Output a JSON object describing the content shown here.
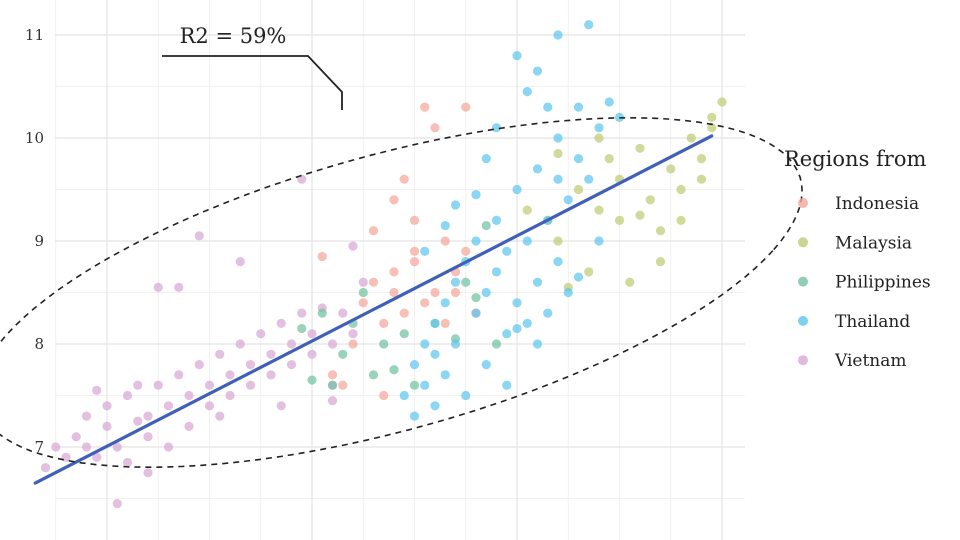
{
  "chart_data": {
    "type": "scatter",
    "x_range": [
      6.6,
      10.2
    ],
    "y_range": [
      6.35,
      11.3
    ],
    "x_ticks": [
      7,
      8,
      9,
      10
    ],
    "y_ticks": [
      7,
      8,
      9,
      10,
      11
    ],
    "grid": true,
    "legend": {
      "title": "Regions from",
      "placement": "right",
      "entries": [
        {
          "name": "Indonesia",
          "color": "#F4A698"
        },
        {
          "name": "Malaysia",
          "color": "#BFCA74"
        },
        {
          "name": "Philippines",
          "color": "#72C2A2"
        },
        {
          "name": "Thailand",
          "color": "#5EC6EE"
        },
        {
          "name": "Vietnam",
          "color": "#D8A8D4"
        }
      ]
    },
    "fit_line": {
      "x": [
        6.65,
        9.95
      ],
      "y": [
        6.65,
        10.02
      ],
      "color": "#3F5FB8"
    },
    "annotation": {
      "text": "R2 = 59%"
    },
    "ellipse": {
      "cx": 8.38,
      "cy": 8.5,
      "rx": 2.05,
      "ry": 1.8,
      "angle_deg": -24
    },
    "series": [
      {
        "name": "Vietnam",
        "points": [
          [
            6.7,
            6.8
          ],
          [
            6.75,
            7.0
          ],
          [
            6.8,
            6.9
          ],
          [
            6.85,
            7.1
          ],
          [
            6.9,
            7.0
          ],
          [
            6.9,
            7.3
          ],
          [
            6.95,
            6.9
          ],
          [
            7.0,
            7.2
          ],
          [
            7.0,
            7.4
          ],
          [
            7.05,
            7.0
          ],
          [
            7.1,
            7.5
          ],
          [
            7.1,
            6.85
          ],
          [
            7.15,
            7.6
          ],
          [
            7.2,
            7.1
          ],
          [
            7.2,
            7.3
          ],
          [
            7.25,
            7.6
          ],
          [
            7.3,
            7.4
          ],
          [
            7.3,
            7.0
          ],
          [
            7.35,
            7.7
          ],
          [
            7.4,
            7.2
          ],
          [
            7.4,
            7.5
          ],
          [
            7.45,
            7.8
          ],
          [
            7.5,
            7.4
          ],
          [
            7.5,
            7.6
          ],
          [
            7.55,
            7.9
          ],
          [
            7.6,
            7.5
          ],
          [
            7.6,
            7.7
          ],
          [
            7.65,
            8.0
          ],
          [
            7.7,
            7.6
          ],
          [
            7.7,
            7.8
          ],
          [
            7.75,
            8.1
          ],
          [
            7.8,
            7.7
          ],
          [
            7.8,
            7.9
          ],
          [
            7.85,
            8.2
          ],
          [
            7.9,
            7.8
          ],
          [
            7.9,
            8.0
          ],
          [
            7.95,
            8.3
          ],
          [
            8.0,
            7.9
          ],
          [
            8.0,
            8.1
          ],
          [
            8.05,
            8.35
          ],
          [
            8.1,
            8.0
          ],
          [
            8.1,
            7.6
          ],
          [
            8.15,
            8.3
          ],
          [
            8.2,
            8.1
          ],
          [
            7.25,
            8.55
          ],
          [
            7.35,
            8.55
          ],
          [
            7.45,
            9.05
          ],
          [
            7.65,
            8.8
          ],
          [
            7.95,
            9.6
          ],
          [
            8.2,
            8.95
          ],
          [
            7.05,
            6.45
          ],
          [
            7.2,
            6.75
          ],
          [
            8.1,
            7.45
          ],
          [
            7.55,
            7.3
          ],
          [
            6.95,
            7.55
          ],
          [
            7.15,
            7.25
          ],
          [
            7.85,
            7.4
          ],
          [
            8.25,
            8.6
          ]
        ]
      },
      {
        "name": "Indonesia",
        "points": [
          [
            8.1,
            7.7
          ],
          [
            8.2,
            8.0
          ],
          [
            8.25,
            8.4
          ],
          [
            8.3,
            8.6
          ],
          [
            8.35,
            8.2
          ],
          [
            8.4,
            8.5
          ],
          [
            8.4,
            8.7
          ],
          [
            8.45,
            8.3
          ],
          [
            8.5,
            8.8
          ],
          [
            8.5,
            8.9
          ],
          [
            8.55,
            8.4
          ],
          [
            8.6,
            8.5
          ],
          [
            8.65,
            9.0
          ],
          [
            8.7,
            8.7
          ],
          [
            8.75,
            8.9
          ],
          [
            8.4,
            9.4
          ],
          [
            8.45,
            9.6
          ],
          [
            8.55,
            10.3
          ],
          [
            8.75,
            10.3
          ],
          [
            8.5,
            9.2
          ],
          [
            8.05,
            8.85
          ],
          [
            8.6,
            10.1
          ],
          [
            8.3,
            9.1
          ],
          [
            8.35,
            7.5
          ],
          [
            8.7,
            8.5
          ],
          [
            8.8,
            8.3
          ],
          [
            8.15,
            7.6
          ],
          [
            8.65,
            8.2
          ]
        ]
      },
      {
        "name": "Malaysia",
        "points": [
          [
            9.2,
            9.0
          ],
          [
            9.3,
            9.5
          ],
          [
            9.35,
            8.7
          ],
          [
            9.4,
            9.3
          ],
          [
            9.45,
            9.8
          ],
          [
            9.5,
            9.6
          ],
          [
            9.55,
            8.6
          ],
          [
            9.6,
            9.9
          ],
          [
            9.65,
            9.4
          ],
          [
            9.7,
            9.1
          ],
          [
            9.75,
            9.7
          ],
          [
            9.8,
            9.5
          ],
          [
            9.85,
            10.0
          ],
          [
            9.9,
            9.8
          ],
          [
            9.95,
            10.1
          ],
          [
            10.0,
            10.35
          ],
          [
            9.95,
            10.2
          ],
          [
            9.9,
            9.6
          ],
          [
            9.15,
            9.2
          ],
          [
            9.25,
            8.55
          ],
          [
            9.05,
            9.3
          ],
          [
            9.5,
            9.2
          ],
          [
            9.7,
            8.8
          ],
          [
            9.8,
            9.2
          ],
          [
            9.2,
            9.85
          ],
          [
            9.4,
            10.0
          ],
          [
            9.6,
            9.25
          ]
        ]
      },
      {
        "name": "Philippines",
        "points": [
          [
            8.0,
            7.65
          ],
          [
            8.05,
            8.3
          ],
          [
            8.1,
            7.6
          ],
          [
            8.15,
            7.9
          ],
          [
            8.2,
            8.2
          ],
          [
            8.3,
            7.7
          ],
          [
            8.35,
            8.0
          ],
          [
            8.4,
            7.75
          ],
          [
            8.5,
            7.6
          ],
          [
            8.6,
            8.2
          ],
          [
            8.7,
            8.05
          ],
          [
            8.75,
            8.6
          ],
          [
            8.8,
            8.45
          ],
          [
            8.85,
            9.15
          ],
          [
            8.9,
            8.0
          ],
          [
            8.45,
            8.1
          ],
          [
            7.95,
            8.15
          ],
          [
            8.25,
            8.5
          ]
        ]
      },
      {
        "name": "Thailand",
        "points": [
          [
            8.45,
            7.5
          ],
          [
            8.5,
            7.8
          ],
          [
            8.5,
            7.3
          ],
          [
            8.55,
            7.6
          ],
          [
            8.55,
            8.0
          ],
          [
            8.6,
            7.4
          ],
          [
            8.6,
            7.9
          ],
          [
            8.6,
            8.2
          ],
          [
            8.65,
            8.4
          ],
          [
            8.65,
            7.7
          ],
          [
            8.7,
            8.6
          ],
          [
            8.7,
            8.0
          ],
          [
            8.75,
            8.8
          ],
          [
            8.75,
            7.5
          ],
          [
            8.8,
            8.3
          ],
          [
            8.8,
            9.0
          ],
          [
            8.85,
            8.5
          ],
          [
            8.85,
            7.8
          ],
          [
            8.9,
            8.7
          ],
          [
            8.9,
            9.2
          ],
          [
            8.95,
            8.1
          ],
          [
            8.95,
            8.9
          ],
          [
            9.0,
            8.4
          ],
          [
            9.0,
            9.5
          ],
          [
            9.05,
            8.2
          ],
          [
            9.05,
            9.0
          ],
          [
            9.1,
            8.6
          ],
          [
            9.1,
            9.7
          ],
          [
            9.15,
            8.3
          ],
          [
            9.15,
            9.2
          ],
          [
            9.2,
            8.8
          ],
          [
            9.2,
            10.0
          ],
          [
            9.25,
            9.4
          ],
          [
            9.25,
            8.5
          ],
          [
            9.3,
            9.8
          ],
          [
            9.3,
            10.3
          ],
          [
            9.35,
            9.6
          ],
          [
            9.4,
            10.1
          ],
          [
            9.0,
            10.8
          ],
          [
            9.05,
            10.45
          ],
          [
            9.2,
            11.0
          ],
          [
            9.1,
            10.65
          ],
          [
            9.35,
            11.1
          ],
          [
            9.45,
            10.35
          ],
          [
            9.5,
            10.2
          ],
          [
            9.0,
            8.15
          ],
          [
            9.1,
            8.0
          ],
          [
            8.95,
            7.6
          ],
          [
            8.85,
            9.8
          ],
          [
            8.9,
            10.1
          ],
          [
            9.15,
            10.3
          ],
          [
            8.7,
            9.35
          ],
          [
            8.8,
            9.45
          ],
          [
            8.65,
            9.15
          ],
          [
            8.55,
            8.9
          ],
          [
            9.3,
            8.65
          ],
          [
            9.4,
            9.0
          ],
          [
            9.2,
            9.6
          ]
        ]
      }
    ]
  }
}
